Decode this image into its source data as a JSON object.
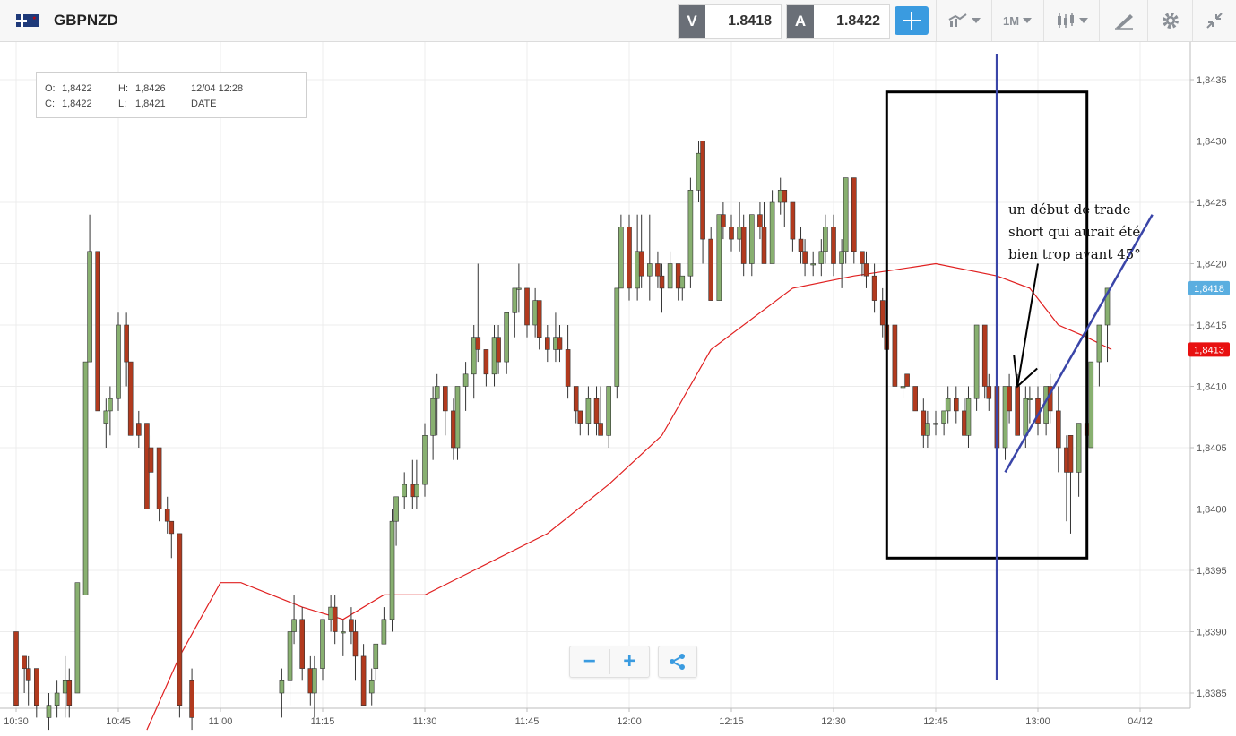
{
  "header": {
    "symbol": "GBPNZD",
    "sell_label": "V",
    "sell_price": "1.8418",
    "buy_label": "A",
    "buy_price": "1.8422",
    "timeframe": "1M",
    "icons": [
      "flag-gb-nz-icon",
      "crosshair-icon",
      "line-chart-icon",
      "candlestick-icon",
      "draw-icon",
      "gear-icon",
      "collapse-icon"
    ]
  },
  "ohlc_box": {
    "o_label": "O:",
    "o_value": "1,8422",
    "h_label": "H:",
    "h_value": "1,8426",
    "date_value": "12/04 12:28",
    "c_label": "C:",
    "c_value": "1,8422",
    "l_label": "L:",
    "l_value": "1,8421",
    "date_label": "DATE"
  },
  "annotation": {
    "line1": "un début de trade",
    "line2": "short qui aurait été",
    "line3": "bien trop avant 45°"
  },
  "chart_data": {
    "type": "candlestick",
    "colors": {
      "up": "#88b070",
      "down": "#b23a1e",
      "ma": "#e02020",
      "drawing": "#3a45a8",
      "current_price": "#5aaee0",
      "ma_price": "#e81010"
    },
    "y_ticks": [
      "1,8385",
      "1,8390",
      "1,8395",
      "1,8400",
      "1,8405",
      "1,8410",
      "1,8415",
      "1,8420",
      "1,8425",
      "1,8430",
      "1,8435"
    ],
    "x_ticks": [
      "10:30",
      "10:45",
      "11:00",
      "11:15",
      "11:30",
      "11:45",
      "12:00",
      "12:15",
      "12:30",
      "12:45",
      "13:00",
      "04/12"
    ],
    "ylim": [
      1.8382,
      1.8438
    ],
    "current_price_label": "1,8418",
    "current_price": 1.8418,
    "ma_price_label": "1,8413",
    "ma_price": 1.8413,
    "moving_average": [
      [
        10.82,
        1.8382
      ],
      [
        10.9,
        1.8388
      ],
      [
        11.0,
        1.8394
      ],
      [
        11.05,
        1.8394
      ],
      [
        11.2,
        1.8392
      ],
      [
        11.3,
        1.8391
      ],
      [
        11.4,
        1.8393
      ],
      [
        11.5,
        1.8393
      ],
      [
        11.62,
        1.8395
      ],
      [
        11.8,
        1.8398
      ],
      [
        11.95,
        1.8402
      ],
      [
        12.08,
        1.8406
      ],
      [
        12.2,
        1.8413
      ],
      [
        12.4,
        1.8418
      ],
      [
        12.55,
        1.8419
      ],
      [
        12.75,
        1.842
      ],
      [
        12.9,
        1.8419
      ],
      [
        12.98,
        1.8418
      ],
      [
        13.05,
        1.8415
      ],
      [
        13.12,
        1.8414
      ],
      [
        13.18,
        1.8413
      ]
    ],
    "candles": [
      [
        10.5,
        1.839,
        1.839,
        1.8384,
        1.8384
      ],
      [
        10.52,
        1.8388,
        1.8388,
        1.8385,
        1.8387
      ],
      [
        10.53,
        1.8387,
        1.8388,
        1.8384,
        1.8386
      ],
      [
        10.55,
        1.8387,
        1.8387,
        1.8383,
        1.8384
      ],
      [
        10.58,
        1.8383,
        1.8385,
        1.8382,
        1.8384
      ],
      [
        10.6,
        1.8384,
        1.8386,
        1.8383,
        1.8385
      ],
      [
        10.62,
        1.8385,
        1.8388,
        1.8383,
        1.8386
      ],
      [
        10.63,
        1.8386,
        1.8387,
        1.8383,
        1.8384
      ],
      [
        10.65,
        1.8385,
        1.8394,
        1.8385,
        1.8394
      ],
      [
        10.67,
        1.8393,
        1.8412,
        1.8393,
        1.8412
      ],
      [
        10.68,
        1.8412,
        1.8424,
        1.8412,
        1.8421
      ],
      [
        10.7,
        1.8421,
        1.8421,
        1.8408,
        1.8408
      ],
      [
        10.72,
        1.8407,
        1.8409,
        1.8405,
        1.8408
      ],
      [
        10.73,
        1.8408,
        1.841,
        1.8406,
        1.8409
      ],
      [
        10.75,
        1.8409,
        1.8416,
        1.8408,
        1.8415
      ],
      [
        10.77,
        1.8415,
        1.8416,
        1.841,
        1.8412
      ],
      [
        10.78,
        1.8412,
        1.8412,
        1.8406,
        1.8406
      ],
      [
        10.8,
        1.8407,
        1.8408,
        1.8405,
        1.8406
      ],
      [
        10.82,
        1.8407,
        1.8407,
        1.84,
        1.84
      ],
      [
        10.83,
        1.8405,
        1.8406,
        1.84,
        1.8403
      ],
      [
        10.85,
        1.8405,
        1.8405,
        1.8399,
        1.84
      ],
      [
        10.87,
        1.84,
        1.8401,
        1.8398,
        1.8399
      ],
      [
        10.88,
        1.8399,
        1.8399,
        1.8396,
        1.8398
      ],
      [
        10.9,
        1.8398,
        1.8398,
        1.8383,
        1.8384
      ],
      [
        10.93,
        1.8386,
        1.8387,
        1.8382,
        1.8383
      ],
      [
        11.15,
        1.8385,
        1.8387,
        1.8383,
        1.8386
      ],
      [
        11.17,
        1.8386,
        1.8391,
        1.8384,
        1.839
      ],
      [
        11.18,
        1.839,
        1.8393,
        1.8389,
        1.8391
      ],
      [
        11.2,
        1.8391,
        1.8392,
        1.8386,
        1.8387
      ],
      [
        11.22,
        1.8387,
        1.8388,
        1.8384,
        1.8385
      ],
      [
        11.23,
        1.8385,
        1.8388,
        1.8383,
        1.8387
      ],
      [
        11.25,
        1.8387,
        1.8391,
        1.8386,
        1.8391
      ],
      [
        11.27,
        1.8391,
        1.8393,
        1.839,
        1.8392
      ],
      [
        11.28,
        1.8392,
        1.8393,
        1.8389,
        1.839
      ],
      [
        11.3,
        1.839,
        1.8391,
        1.8388,
        1.839
      ],
      [
        11.32,
        1.8391,
        1.8392,
        1.8389,
        1.839
      ],
      [
        11.33,
        1.839,
        1.8391,
        1.8386,
        1.8388
      ],
      [
        11.35,
        1.8388,
        1.8389,
        1.8384,
        1.8384
      ],
      [
        11.37,
        1.8385,
        1.8387,
        1.8384,
        1.8386
      ],
      [
        11.38,
        1.8387,
        1.8389,
        1.8386,
        1.8389
      ],
      [
        11.4,
        1.8389,
        1.8392,
        1.8389,
        1.8391
      ],
      [
        11.42,
        1.8391,
        1.84,
        1.839,
        1.8399
      ],
      [
        11.43,
        1.8399,
        1.8401,
        1.8397,
        1.8401
      ],
      [
        11.45,
        1.8401,
        1.8403,
        1.84,
        1.8402
      ],
      [
        11.47,
        1.8402,
        1.8404,
        1.84,
        1.8401
      ],
      [
        11.48,
        1.8401,
        1.8404,
        1.84,
        1.8402
      ],
      [
        11.5,
        1.8402,
        1.8407,
        1.8401,
        1.8406
      ],
      [
        11.52,
        1.8406,
        1.841,
        1.8404,
        1.8409
      ],
      [
        11.53,
        1.8409,
        1.8411,
        1.8406,
        1.841
      ],
      [
        11.55,
        1.841,
        1.841,
        1.8406,
        1.8408
      ],
      [
        11.57,
        1.8408,
        1.8409,
        1.8404,
        1.8405
      ],
      [
        11.58,
        1.8405,
        1.841,
        1.8404,
        1.841
      ],
      [
        11.6,
        1.841,
        1.8412,
        1.8408,
        1.8411
      ],
      [
        11.62,
        1.8411,
        1.8415,
        1.8409,
        1.8414
      ],
      [
        11.63,
        1.8414,
        1.842,
        1.8412,
        1.8413
      ],
      [
        11.65,
        1.8413,
        1.8413,
        1.841,
        1.8411
      ],
      [
        11.67,
        1.8411,
        1.8415,
        1.841,
        1.8414
      ],
      [
        11.68,
        1.8414,
        1.8415,
        1.8411,
        1.8412
      ],
      [
        11.7,
        1.8412,
        1.8416,
        1.8411,
        1.8416
      ],
      [
        11.72,
        1.8416,
        1.8418,
        1.8414,
        1.8418
      ],
      [
        11.73,
        1.8418,
        1.842,
        1.8416,
        1.8418
      ],
      [
        11.75,
        1.8418,
        1.8418,
        1.8414,
        1.8415
      ],
      [
        11.77,
        1.8415,
        1.8418,
        1.8414,
        1.8417
      ],
      [
        11.78,
        1.8417,
        1.8417,
        1.8413,
        1.8414
      ],
      [
        11.8,
        1.8414,
        1.8415,
        1.8412,
        1.8413
      ],
      [
        11.82,
        1.8413,
        1.8416,
        1.8412,
        1.8414
      ],
      [
        11.83,
        1.8414,
        1.8415,
        1.8412,
        1.8413
      ],
      [
        11.85,
        1.8413,
        1.8415,
        1.8409,
        1.841
      ],
      [
        11.87,
        1.841,
        1.841,
        1.8407,
        1.8408
      ],
      [
        11.88,
        1.8408,
        1.8408,
        1.8406,
        1.8407
      ],
      [
        11.9,
        1.8407,
        1.841,
        1.8406,
        1.8409
      ],
      [
        11.92,
        1.8409,
        1.841,
        1.8406,
        1.8407
      ],
      [
        11.93,
        1.8407,
        1.841,
        1.8406,
        1.8406
      ],
      [
        11.95,
        1.8406,
        1.841,
        1.8405,
        1.841
      ],
      [
        11.97,
        1.841,
        1.8418,
        1.8409,
        1.8418
      ],
      [
        11.98,
        1.8418,
        1.8424,
        1.8418,
        1.8423
      ],
      [
        12.0,
        1.8423,
        1.8424,
        1.8417,
        1.8418
      ],
      [
        12.02,
        1.8418,
        1.8424,
        1.8417,
        1.8421
      ],
      [
        12.03,
        1.8421,
        1.8424,
        1.8418,
        1.8419
      ],
      [
        12.05,
        1.8419,
        1.8424,
        1.8417,
        1.842
      ],
      [
        12.07,
        1.842,
        1.8421,
        1.8418,
        1.8419
      ],
      [
        12.08,
        1.8419,
        1.842,
        1.8416,
        1.8418
      ],
      [
        12.1,
        1.8418,
        1.8421,
        1.8418,
        1.842
      ],
      [
        12.12,
        1.842,
        1.842,
        1.8417,
        1.8418
      ],
      [
        12.13,
        1.8418,
        1.8419,
        1.8417,
        1.8419
      ],
      [
        12.15,
        1.8419,
        1.8427,
        1.8418,
        1.8426
      ],
      [
        12.17,
        1.8426,
        1.843,
        1.8425,
        1.8429
      ],
      [
        12.18,
        1.843,
        1.843,
        1.842,
        1.8422
      ],
      [
        12.2,
        1.8422,
        1.8423,
        1.8417,
        1.8417
      ],
      [
        12.22,
        1.8417,
        1.8424,
        1.8417,
        1.8424
      ],
      [
        12.23,
        1.8424,
        1.8425,
        1.8422,
        1.8423
      ],
      [
        12.25,
        1.8423,
        1.8424,
        1.8421,
        1.8422
      ],
      [
        12.27,
        1.8422,
        1.8425,
        1.8421,
        1.8423
      ],
      [
        12.28,
        1.8423,
        1.8424,
        1.8419,
        1.842
      ],
      [
        12.3,
        1.842,
        1.8424,
        1.8419,
        1.8424
      ],
      [
        12.32,
        1.8424,
        1.8425,
        1.8422,
        1.8423
      ],
      [
        12.33,
        1.8423,
        1.8425,
        1.842,
        1.842
      ],
      [
        12.35,
        1.842,
        1.8426,
        1.842,
        1.8425
      ],
      [
        12.37,
        1.8425,
        1.8427,
        1.8424,
        1.8426
      ],
      [
        12.38,
        1.8426,
        1.8426,
        1.8423,
        1.8425
      ],
      [
        12.4,
        1.8425,
        1.8425,
        1.8421,
        1.8422
      ],
      [
        12.42,
        1.8422,
        1.8423,
        1.842,
        1.8421
      ],
      [
        12.43,
        1.8421,
        1.8422,
        1.8419,
        1.842
      ],
      [
        12.45,
        1.842,
        1.8421,
        1.8419,
        1.842
      ],
      [
        12.47,
        1.842,
        1.8422,
        1.8419,
        1.8421
      ],
      [
        12.48,
        1.8421,
        1.8424,
        1.842,
        1.8423
      ],
      [
        12.5,
        1.8423,
        1.8424,
        1.8419,
        1.842
      ],
      [
        12.52,
        1.842,
        1.8422,
        1.8418,
        1.8421
      ],
      [
        12.53,
        1.8421,
        1.8427,
        1.842,
        1.8427
      ],
      [
        12.55,
        1.8427,
        1.8427,
        1.842,
        1.8421
      ],
      [
        12.57,
        1.8421,
        1.8421,
        1.8419,
        1.842
      ],
      [
        12.58,
        1.842,
        1.8421,
        1.8418,
        1.8419
      ],
      [
        12.6,
        1.8419,
        1.842,
        1.8416,
        1.8417
      ],
      [
        12.62,
        1.8417,
        1.8418,
        1.8414,
        1.8415
      ],
      [
        12.63,
        1.8415,
        1.8415,
        1.8412,
        1.8413
      ],
      [
        12.65,
        1.8415,
        1.8415,
        1.841,
        1.841
      ],
      [
        12.67,
        1.841,
        1.8411,
        1.8409,
        1.841
      ],
      [
        12.68,
        1.8411,
        1.8411,
        1.841,
        1.841
      ],
      [
        12.7,
        1.841,
        1.841,
        1.8408,
        1.8408
      ],
      [
        12.72,
        1.8408,
        1.8409,
        1.8405,
        1.8406
      ],
      [
        12.73,
        1.8406,
        1.8408,
        1.8405,
        1.8407
      ],
      [
        12.75,
        1.8407,
        1.8408,
        1.8406,
        1.8407
      ],
      [
        12.77,
        1.8407,
        1.8408,
        1.8406,
        1.8408
      ],
      [
        12.78,
        1.8408,
        1.841,
        1.8407,
        1.8409
      ],
      [
        12.8,
        1.8409,
        1.841,
        1.8407,
        1.8408
      ],
      [
        12.82,
        1.8408,
        1.8409,
        1.8406,
        1.8406
      ],
      [
        12.83,
        1.8406,
        1.841,
        1.8405,
        1.8409
      ],
      [
        12.85,
        1.8409,
        1.8415,
        1.8408,
        1.8415
      ],
      [
        12.87,
        1.8415,
        1.8415,
        1.8409,
        1.841
      ],
      [
        12.88,
        1.841,
        1.8411,
        1.8408,
        1.8409
      ],
      [
        12.9,
        1.841,
        1.841,
        1.8405,
        1.8405
      ],
      [
        12.92,
        1.8405,
        1.841,
        1.8404,
        1.841
      ],
      [
        12.93,
        1.841,
        1.8411,
        1.8407,
        1.8408
      ],
      [
        12.95,
        1.841,
        1.8411,
        1.8406,
        1.8406
      ],
      [
        12.97,
        1.8406,
        1.841,
        1.8405,
        1.8409
      ],
      [
        12.98,
        1.8409,
        1.841,
        1.8407,
        1.8409
      ],
      [
        13.0,
        1.8409,
        1.841,
        1.8406,
        1.8407
      ],
      [
        13.02,
        1.8407,
        1.841,
        1.8406,
        1.841
      ],
      [
        13.03,
        1.841,
        1.8411,
        1.8407,
        1.8408
      ],
      [
        13.05,
        1.8408,
        1.841,
        1.8403,
        1.8405
      ],
      [
        13.07,
        1.8405,
        1.8406,
        1.8399,
        1.8403
      ],
      [
        13.08,
        1.8406,
        1.8406,
        1.8398,
        1.8403
      ],
      [
        13.1,
        1.8403,
        1.8407,
        1.8401,
        1.8407
      ],
      [
        13.12,
        1.8407,
        1.8408,
        1.8404,
        1.8406
      ],
      [
        13.13,
        1.8405,
        1.8412,
        1.8405,
        1.8412
      ],
      [
        13.15,
        1.8412,
        1.8415,
        1.841,
        1.8415
      ],
      [
        13.17,
        1.8415,
        1.8418,
        1.8412,
        1.8418
      ]
    ],
    "annotation_box": [
      [
        12.63,
        1.8434
      ],
      [
        13.12,
        1.8396
      ]
    ],
    "vertical_line_x": 12.9,
    "trend_line": [
      [
        12.92,
        1.8403
      ],
      [
        13.28,
        1.8424
      ]
    ],
    "arrow": [
      [
        13.0,
        1.842
      ],
      [
        12.95,
        1.841
      ]
    ]
  },
  "controls": {
    "zoom_out_label": "−",
    "zoom_in_label": "+"
  }
}
